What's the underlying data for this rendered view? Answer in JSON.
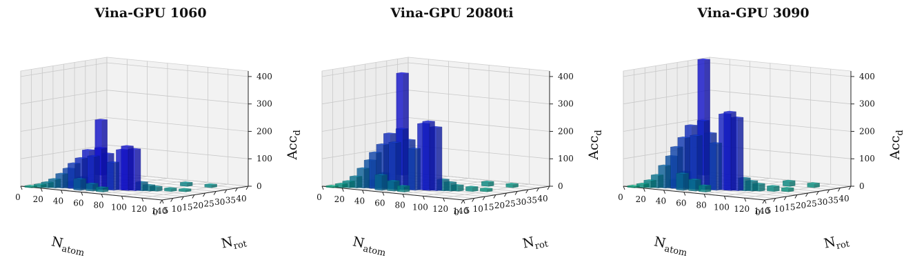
{
  "chart_data": [
    {
      "type": "bar3d",
      "title": "Vina-GPU 1060",
      "xlabel": "N",
      "xlabel_sub": "atom",
      "ylabel": "N",
      "ylabel_sub": "rot",
      "zlabel": "Acc",
      "zlabel_sub": "d",
      "xticks": [
        0,
        20,
        40,
        60,
        80,
        100,
        120,
        140
      ],
      "yticks": [
        0,
        5,
        10,
        15,
        20,
        25,
        30,
        35,
        40
      ],
      "zticks": [
        0,
        100,
        200,
        300,
        400
      ],
      "xlim": [
        0,
        140
      ],
      "ylim": [
        0,
        40
      ],
      "zlim": [
        0,
        420
      ],
      "bars": [
        {
          "x": 10,
          "y": 0,
          "z": 5
        },
        {
          "x": 15,
          "y": 2,
          "z": 10
        },
        {
          "x": 20,
          "y": 3,
          "z": 18
        },
        {
          "x": 25,
          "y": 4,
          "z": 30
        },
        {
          "x": 30,
          "y": 5,
          "z": 50
        },
        {
          "x": 35,
          "y": 6,
          "z": 70
        },
        {
          "x": 40,
          "y": 6,
          "z": 90
        },
        {
          "x": 45,
          "y": 7,
          "z": 110
        },
        {
          "x": 50,
          "y": 8,
          "z": 140
        },
        {
          "x": 55,
          "y": 8,
          "z": 120
        },
        {
          "x": 60,
          "y": 9,
          "z": 150
        },
        {
          "x": 65,
          "y": 10,
          "z": 130
        },
        {
          "x": 70,
          "y": 10,
          "z": 100
        },
        {
          "x": 75,
          "y": 12,
          "z": 145
        },
        {
          "x": 80,
          "y": 12,
          "z": 160
        },
        {
          "x": 85,
          "y": 13,
          "z": 150
        },
        {
          "x": 90,
          "y": 14,
          "z": 30
        },
        {
          "x": 95,
          "y": 15,
          "z": 20
        },
        {
          "x": 100,
          "y": 16,
          "z": 15
        },
        {
          "x": 110,
          "y": 18,
          "z": 10
        },
        {
          "x": 120,
          "y": 20,
          "z": 8
        },
        {
          "x": 60,
          "y": 5,
          "z": 25
        },
        {
          "x": 50,
          "y": 4,
          "z": 40
        },
        {
          "x": 40,
          "y": 10,
          "z": 35
        },
        {
          "x": 70,
          "y": 5,
          "z": 15
        },
        {
          "x": 30,
          "y": 10,
          "z": 15
        },
        {
          "x": 5,
          "y": 35,
          "z": 200
        },
        {
          "x": 100,
          "y": 30,
          "z": 12
        },
        {
          "x": 120,
          "y": 32,
          "z": 10
        }
      ]
    },
    {
      "type": "bar3d",
      "title": "Vina-GPU 2080ti",
      "xlabel": "N",
      "xlabel_sub": "atom",
      "ylabel": "N",
      "ylabel_sub": "rot",
      "zlabel": "Acc",
      "zlabel_sub": "d",
      "xticks": [
        0,
        20,
        40,
        60,
        80,
        100,
        120,
        140
      ],
      "yticks": [
        0,
        5,
        10,
        15,
        20,
        25,
        30,
        35,
        40
      ],
      "zticks": [
        0,
        100,
        200,
        300,
        400
      ],
      "xlim": [
        0,
        140
      ],
      "ylim": [
        0,
        40
      ],
      "zlim": [
        0,
        420
      ],
      "bars": [
        {
          "x": 10,
          "y": 0,
          "z": 5
        },
        {
          "x": 15,
          "y": 2,
          "z": 12
        },
        {
          "x": 20,
          "y": 3,
          "z": 22
        },
        {
          "x": 25,
          "y": 4,
          "z": 40
        },
        {
          "x": 30,
          "y": 5,
          "z": 70
        },
        {
          "x": 35,
          "y": 6,
          "z": 100
        },
        {
          "x": 40,
          "y": 6,
          "z": 130
        },
        {
          "x": 45,
          "y": 7,
          "z": 160
        },
        {
          "x": 50,
          "y": 8,
          "z": 200
        },
        {
          "x": 55,
          "y": 8,
          "z": 170
        },
        {
          "x": 60,
          "y": 9,
          "z": 220
        },
        {
          "x": 65,
          "y": 10,
          "z": 180
        },
        {
          "x": 70,
          "y": 10,
          "z": 150
        },
        {
          "x": 75,
          "y": 12,
          "z": 240
        },
        {
          "x": 80,
          "y": 12,
          "z": 250
        },
        {
          "x": 85,
          "y": 13,
          "z": 230
        },
        {
          "x": 90,
          "y": 14,
          "z": 40
        },
        {
          "x": 95,
          "y": 15,
          "z": 30
        },
        {
          "x": 100,
          "y": 16,
          "z": 20
        },
        {
          "x": 110,
          "y": 18,
          "z": 15
        },
        {
          "x": 120,
          "y": 20,
          "z": 10
        },
        {
          "x": 60,
          "y": 5,
          "z": 35
        },
        {
          "x": 50,
          "y": 4,
          "z": 55
        },
        {
          "x": 40,
          "y": 10,
          "z": 50
        },
        {
          "x": 70,
          "y": 5,
          "z": 20
        },
        {
          "x": 30,
          "y": 10,
          "z": 20
        },
        {
          "x": 5,
          "y": 35,
          "z": 370
        },
        {
          "x": 100,
          "y": 30,
          "z": 15
        },
        {
          "x": 120,
          "y": 32,
          "z": 12
        }
      ]
    },
    {
      "type": "bar3d",
      "title": "Vina-GPU 3090",
      "xlabel": "N",
      "xlabel_sub": "atom",
      "ylabel": "N",
      "ylabel_sub": "rot",
      "zlabel": "Acc",
      "zlabel_sub": "d",
      "xticks": [
        0,
        20,
        40,
        60,
        80,
        100,
        120,
        140
      ],
      "yticks": [
        0,
        5,
        10,
        15,
        20,
        25,
        30,
        35,
        40
      ],
      "zticks": [
        0,
        100,
        200,
        300,
        400
      ],
      "xlim": [
        0,
        140
      ],
      "ylim": [
        0,
        40
      ],
      "zlim": [
        0,
        420
      ],
      "bars": [
        {
          "x": 10,
          "y": 0,
          "z": 5
        },
        {
          "x": 15,
          "y": 2,
          "z": 12
        },
        {
          "x": 20,
          "y": 3,
          "z": 25
        },
        {
          "x": 25,
          "y": 4,
          "z": 45
        },
        {
          "x": 30,
          "y": 5,
          "z": 80
        },
        {
          "x": 35,
          "y": 6,
          "z": 115
        },
        {
          "x": 40,
          "y": 6,
          "z": 150
        },
        {
          "x": 45,
          "y": 7,
          "z": 185
        },
        {
          "x": 50,
          "y": 8,
          "z": 230
        },
        {
          "x": 55,
          "y": 8,
          "z": 195
        },
        {
          "x": 60,
          "y": 9,
          "z": 250
        },
        {
          "x": 65,
          "y": 10,
          "z": 205
        },
        {
          "x": 70,
          "y": 10,
          "z": 170
        },
        {
          "x": 75,
          "y": 12,
          "z": 275
        },
        {
          "x": 80,
          "y": 12,
          "z": 285
        },
        {
          "x": 85,
          "y": 13,
          "z": 265
        },
        {
          "x": 90,
          "y": 14,
          "z": 45
        },
        {
          "x": 95,
          "y": 15,
          "z": 35
        },
        {
          "x": 100,
          "y": 16,
          "z": 25
        },
        {
          "x": 110,
          "y": 18,
          "z": 18
        },
        {
          "x": 120,
          "y": 20,
          "z": 12
        },
        {
          "x": 60,
          "y": 5,
          "z": 40
        },
        {
          "x": 50,
          "y": 4,
          "z": 60
        },
        {
          "x": 40,
          "y": 10,
          "z": 55
        },
        {
          "x": 70,
          "y": 5,
          "z": 22
        },
        {
          "x": 30,
          "y": 10,
          "z": 22
        },
        {
          "x": 5,
          "y": 35,
          "z": 420
        },
        {
          "x": 100,
          "y": 30,
          "z": 18
        },
        {
          "x": 120,
          "y": 32,
          "z": 14
        }
      ]
    }
  ]
}
